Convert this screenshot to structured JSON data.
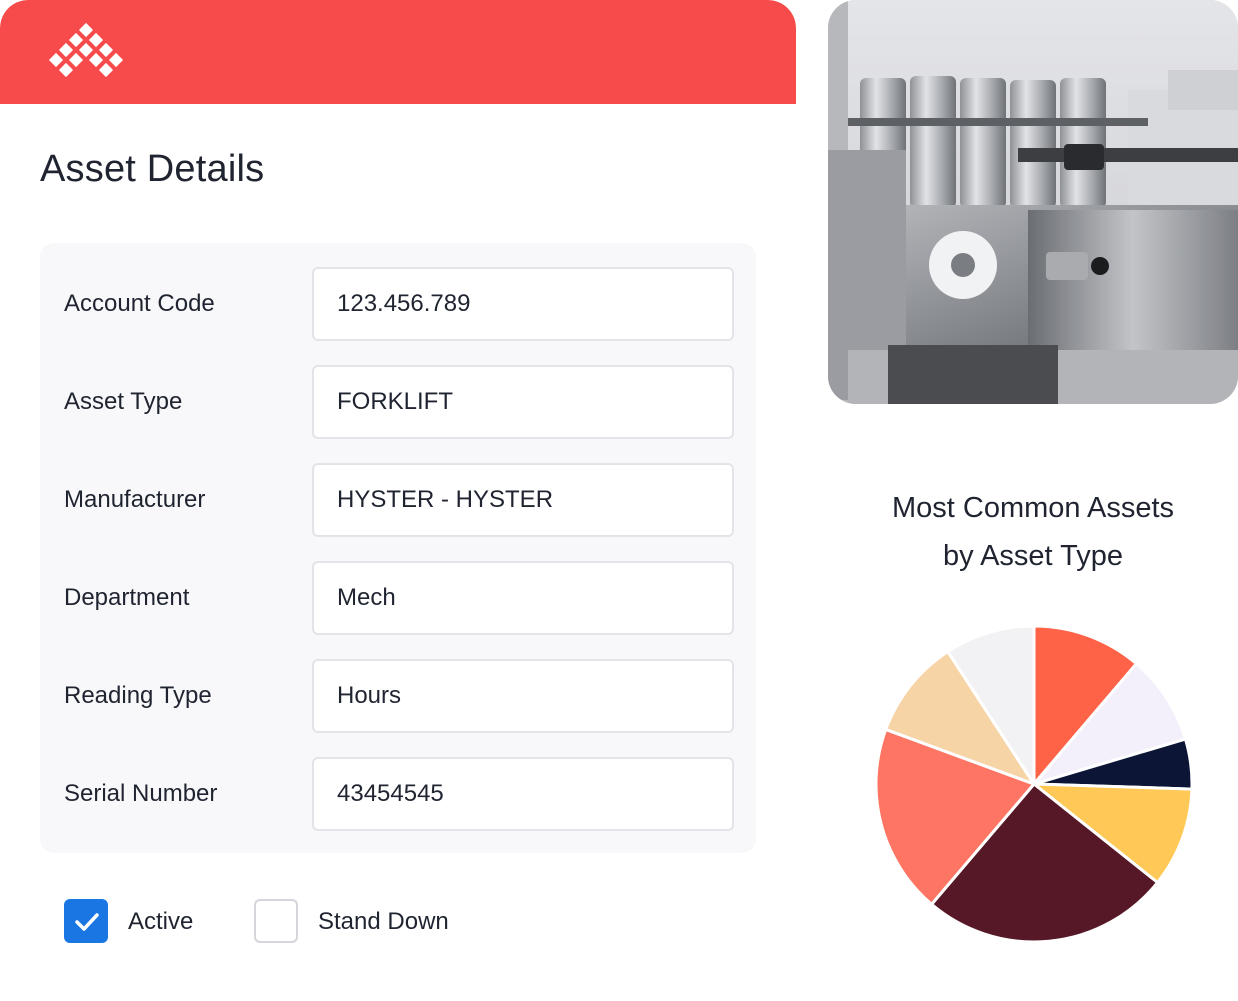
{
  "header": {
    "logo": "diamond-grid-logo"
  },
  "page": {
    "title": "Asset Details"
  },
  "form": {
    "fields": [
      {
        "label": "Account Code",
        "value": "123.456.789"
      },
      {
        "label": "Asset Type",
        "value": "FORKLIFT"
      },
      {
        "label": "Manufacturer",
        "value": "HYSTER - HYSTER"
      },
      {
        "label": "Department",
        "value": "Mech"
      },
      {
        "label": "Reading Type",
        "value": "Hours"
      },
      {
        "label": "Serial Number",
        "value": "43454545"
      }
    ],
    "checkboxes": [
      {
        "label": "Active",
        "checked": true
      },
      {
        "label": "Stand Down",
        "checked": false
      }
    ]
  },
  "colors": {
    "brand": "#f74a4a",
    "accent": "#1976e3"
  },
  "chart_data": {
    "type": "pie",
    "title_line1": "Most Common Assets",
    "title_line2": "by Asset Type",
    "slices": [
      {
        "value": 11,
        "color": "#ff6347"
      },
      {
        "value": 9,
        "color": "#f3f0fb"
      },
      {
        "value": 5,
        "color": "#0c1535"
      },
      {
        "value": 10,
        "color": "#ffc857"
      },
      {
        "value": 25,
        "color": "#561826"
      },
      {
        "value": 19,
        "color": "#fe7663"
      },
      {
        "value": 10,
        "color": "#f7d4a6"
      },
      {
        "value": 9,
        "color": "#f2f2f5"
      }
    ]
  }
}
